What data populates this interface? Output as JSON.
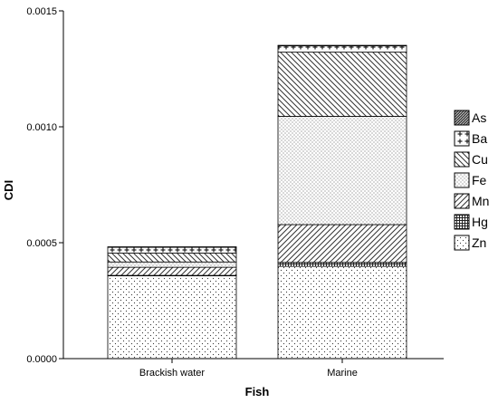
{
  "chart_data": {
    "type": "bar",
    "stacked": true,
    "categories": [
      "Brackish water",
      "Marine"
    ],
    "xlabel": "Fish",
    "ylabel": "CDI",
    "ylim": [
      0,
      0.0015
    ],
    "yticks": [
      "0.0000",
      "0.0005",
      "0.0010",
      "0.0015"
    ],
    "ytick_values": [
      0,
      0.0005,
      0.001,
      0.0015
    ],
    "grid": false,
    "legend_position": "right",
    "series": [
      {
        "name": "Zn",
        "pattern": "dots",
        "values": [
          0.000357,
          0.000398
        ]
      },
      {
        "name": "Hg",
        "pattern": "grid",
        "values": [
          2e-06,
          1.7e-05
        ]
      },
      {
        "name": "Mn",
        "pattern": "diagonal-up",
        "values": [
          3.5e-05,
          0.000163
        ]
      },
      {
        "name": "Fe",
        "pattern": "dense-dots",
        "values": [
          2.3e-05,
          0.000467
        ]
      },
      {
        "name": "Cu",
        "pattern": "diagonal-down",
        "values": [
          3.8e-05,
          0.000277
        ]
      },
      {
        "name": "Ba",
        "pattern": "crosses",
        "values": [
          2.5e-05,
          2.7e-05
        ]
      },
      {
        "name": "As",
        "pattern": "solid-hatch",
        "values": [
          1e-06,
          1e-06
        ]
      }
    ]
  }
}
